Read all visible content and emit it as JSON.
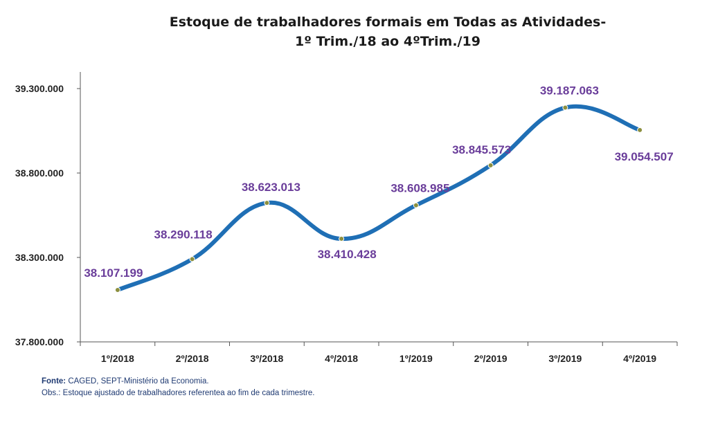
{
  "title_line1": "Estoque de trabalhadores formais em Todas as Atividades-",
  "title_line2": "1º Trim./18 ao 4ºTrim./19",
  "colors": {
    "line": "#1f6fb5",
    "marker": "#8c8f3f",
    "label": "#6a3d9a",
    "axis": "#555555",
    "text": "#222222"
  },
  "chart_data": {
    "type": "line",
    "categories": [
      "1º/2018",
      "2º/2018",
      "3º/2018",
      "4º/2018",
      "1º/2019",
      "2º/2019",
      "3º/2019",
      "4º/2019"
    ],
    "series": [
      {
        "values": [
          38107199,
          38290118,
          38623013,
          38410428,
          38608985,
          38845573,
          39187063,
          39054507
        ],
        "labels": [
          "38.107.199",
          "38.290.118",
          "38.623.013",
          "38.410.428",
          "38.608.985",
          "38.845.573",
          "39.187.063",
          "39.054.507"
        ]
      }
    ],
    "yticks": [
      37800000,
      38300000,
      38800000,
      39300000
    ],
    "ytick_labels": [
      "37.800.000",
      "38.300.000",
      "38.800.000",
      "39.300.000"
    ],
    "ylim": [
      37800000,
      39400000
    ],
    "title": "Estoque de trabalhadores formais em Todas as Atividades- 1º Trim./18 ao 4ºTrim./19",
    "grid": false
  },
  "footnote": {
    "source_label": "Fonte:",
    "source_text": " CAGED, SEPT-Ministério da Economia.",
    "obs": "Obs.: Estoque ajustado de trabalhadores referentea ao fim de cada trimestre."
  }
}
